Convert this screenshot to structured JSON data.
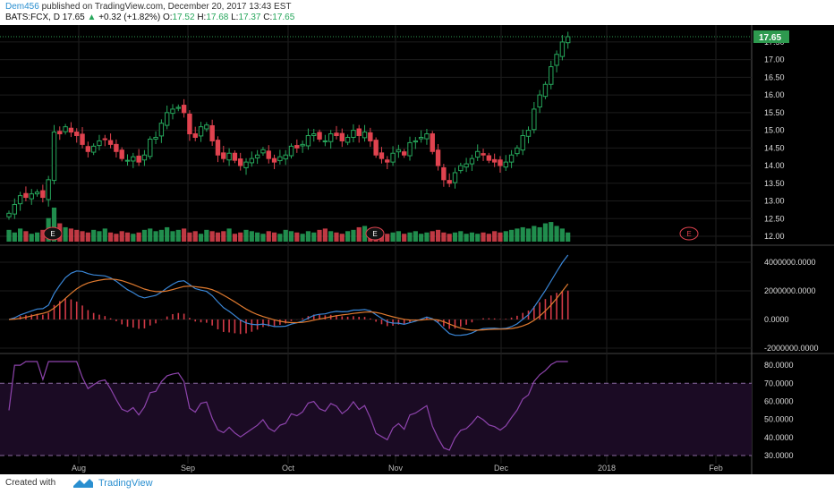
{
  "header": {
    "author": "Dem456",
    "published_text": " published on TradingView.com, December 20, 2017 13:43 EST",
    "symbol": "BATS:FCX, D",
    "last": "17.65",
    "change": "+0.32 (+1.82%)",
    "o_label": "O:",
    "o_value": "17.52",
    "h_label": "H:",
    "h_value": "17.68",
    "l_label": "L:",
    "l_value": "17.37",
    "c_label": "C:",
    "c_value": "17.65"
  },
  "footer": {
    "created_with": "Created with",
    "brand": "TradingView"
  },
  "colors": {
    "up": "#26a65b",
    "down": "#e0434f",
    "macd": "#3a87d8",
    "signal": "#e07a2f",
    "rsi": "#8e44ad",
    "price_badge": "#2e9a4f"
  },
  "chart_data": [
    {
      "type": "candlestick",
      "panel": "price",
      "current_price_label": "17.65",
      "y_ticks": [
        "17.50",
        "17.00",
        "16.50",
        "16.00",
        "15.50",
        "15.00",
        "14.50",
        "14.00",
        "13.50",
        "13.00",
        "12.50",
        "12.00"
      ],
      "ylim": [
        12.0,
        17.65
      ],
      "x_ticks": [
        "Aug",
        "Sep",
        "Oct",
        "Nov",
        "Dec",
        "2018",
        "Feb"
      ],
      "earnings_markers": [
        "E",
        "E",
        "E"
      ],
      "close": [
        12.65,
        12.9,
        13.15,
        13.1,
        13.2,
        13.25,
        13.1,
        13.6,
        14.95,
        14.9,
        15.1,
        14.95,
        14.85,
        14.6,
        14.4,
        14.55,
        14.7,
        14.75,
        14.6,
        14.4,
        14.2,
        14.15,
        14.25,
        14.1,
        14.3,
        14.75,
        14.8,
        15.2,
        15.5,
        15.6,
        15.65,
        15.5,
        14.9,
        14.8,
        15.1,
        15.15,
        14.7,
        14.3,
        14.2,
        14.35,
        14.15,
        14.0,
        14.1,
        14.2,
        14.3,
        14.45,
        14.2,
        14.1,
        14.25,
        14.3,
        14.55,
        14.5,
        14.6,
        14.85,
        14.9,
        14.75,
        14.7,
        14.9,
        14.85,
        14.7,
        14.8,
        15.0,
        14.85,
        14.95,
        14.7,
        14.3,
        14.2,
        14.1,
        14.35,
        14.45,
        14.3,
        14.65,
        14.7,
        14.8,
        14.9,
        14.4,
        14.0,
        13.6,
        13.5,
        13.8,
        14.0,
        14.05,
        14.2,
        14.4,
        14.3,
        14.15,
        14.1,
        14.0,
        14.1,
        14.3,
        14.5,
        14.85,
        15.0,
        15.6,
        16.0,
        16.3,
        16.8,
        17.15,
        17.5,
        17.65
      ],
      "volume": [
        0.45,
        0.35,
        0.5,
        0.4,
        0.3,
        0.35,
        0.45,
        0.9,
        1.3,
        0.7,
        0.55,
        0.5,
        0.45,
        0.4,
        0.35,
        0.45,
        0.4,
        0.5,
        0.35,
        0.3,
        0.4,
        0.35,
        0.3,
        0.35,
        0.45,
        0.5,
        0.4,
        0.45,
        0.55,
        0.4,
        0.45,
        0.5,
        0.35,
        0.4,
        0.3,
        0.45,
        0.4,
        0.35,
        0.4,
        0.5,
        0.3,
        0.35,
        0.45,
        0.4,
        0.35,
        0.3,
        0.4,
        0.35,
        0.3,
        0.45,
        0.4,
        0.35,
        0.3,
        0.4,
        0.35,
        0.45,
        0.5,
        0.4,
        0.35,
        0.3,
        0.4,
        0.45,
        0.55,
        0.6,
        0.45,
        0.4,
        0.35,
        0.3,
        0.35,
        0.4,
        0.3,
        0.35,
        0.4,
        0.3,
        0.35,
        0.4,
        0.45,
        0.35,
        0.3,
        0.35,
        0.4,
        0.3,
        0.35,
        0.3,
        0.35,
        0.3,
        0.4,
        0.35,
        0.4,
        0.45,
        0.5,
        0.55,
        0.5,
        0.6,
        0.55,
        0.7,
        0.75,
        0.6,
        0.5,
        0.35
      ]
    },
    {
      "type": "line",
      "panel": "macd",
      "y_ticks": [
        "4000000.0000",
        "2000000.0000",
        "0.0000",
        "-2000000.0000"
      ],
      "ylim": [
        -2000000,
        4500000
      ],
      "series_colors": [
        "#3a87d8",
        "#e07a2f"
      ]
    },
    {
      "type": "line",
      "panel": "rsi",
      "y_ticks": [
        "80.0000",
        "70.0000",
        "60.0000",
        "50.0000",
        "40.0000",
        "30.0000"
      ],
      "ylim": [
        28,
        84
      ],
      "bands": [
        70,
        30
      ]
    }
  ]
}
